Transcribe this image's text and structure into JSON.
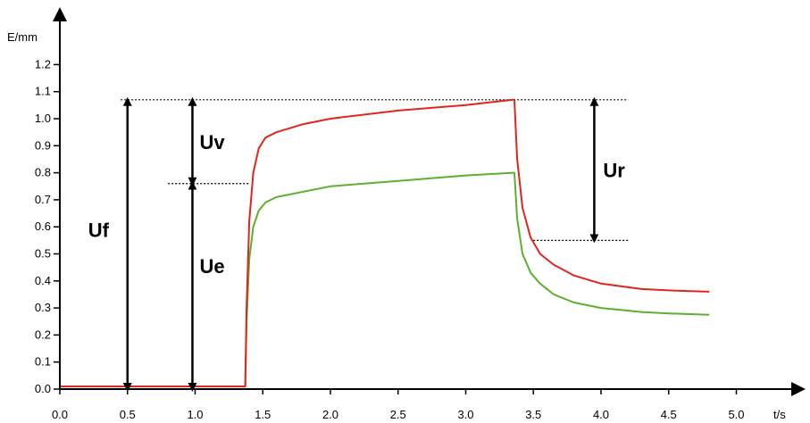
{
  "chart_data": {
    "type": "line",
    "xlabel": "t/s",
    "ylabel": "E/mm",
    "xlim": [
      0,
      5.0
    ],
    "ylim": [
      0,
      1.2
    ],
    "x_ticks": [
      "0.0",
      "0.5",
      "1.0",
      "1.5",
      "2.0",
      "2.5",
      "3.0",
      "3.5",
      "4.0",
      "4.5",
      "5.0"
    ],
    "y_ticks": [
      "0.0",
      "0.1",
      "0.2",
      "0.3",
      "0.4",
      "0.5",
      "0.6",
      "0.7",
      "0.8",
      "0.9",
      "1.0",
      "1.1",
      "1.2"
    ],
    "grid": false,
    "series": [
      {
        "color": "#e0261c",
        "x": [
          0,
          1.37,
          1.38,
          1.4,
          1.43,
          1.47,
          1.52,
          1.6,
          1.8,
          2.0,
          2.5,
          3.0,
          3.35,
          3.36,
          3.38,
          3.42,
          3.48,
          3.55,
          3.65,
          3.8,
          4.0,
          4.3,
          4.5,
          4.8
        ],
        "y": [
          0.01,
          0.01,
          0.3,
          0.62,
          0.8,
          0.89,
          0.93,
          0.95,
          0.98,
          1.0,
          1.03,
          1.05,
          1.07,
          1.07,
          0.85,
          0.67,
          0.56,
          0.5,
          0.46,
          0.42,
          0.39,
          0.37,
          0.365,
          0.36
        ]
      },
      {
        "color": "#5cb030",
        "x": [
          0,
          1.37,
          1.38,
          1.4,
          1.43,
          1.47,
          1.52,
          1.6,
          1.8,
          2.0,
          2.5,
          3.0,
          3.35,
          3.36,
          3.38,
          3.42,
          3.48,
          3.55,
          3.65,
          3.8,
          4.0,
          4.3,
          4.5,
          4.8
        ],
        "y": [
          0.01,
          0.01,
          0.25,
          0.48,
          0.6,
          0.66,
          0.69,
          0.71,
          0.73,
          0.75,
          0.77,
          0.79,
          0.8,
          0.8,
          0.63,
          0.5,
          0.43,
          0.39,
          0.35,
          0.32,
          0.3,
          0.285,
          0.28,
          0.275
        ]
      }
    ],
    "annotations": [
      {
        "label": "Uf",
        "from": 0.0,
        "to": 1.07,
        "at_x": 0.5
      },
      {
        "label": "Uv",
        "from": 0.76,
        "to": 1.07,
        "at_x": 0.98
      },
      {
        "label": "Ue",
        "from": 0.0,
        "to": 0.76,
        "at_x": 0.98
      },
      {
        "label": "Ur",
        "from": 0.55,
        "to": 1.07,
        "at_x": 3.95
      }
    ],
    "reference_lines": [
      {
        "y": 1.07,
        "from_x": 0.45,
        "to_x": 4.2
      },
      {
        "y": 0.76,
        "from_x": 0.8,
        "to_x": 1.4
      },
      {
        "y": 0.55,
        "from_x": 3.5,
        "to_x": 4.2
      }
    ]
  }
}
